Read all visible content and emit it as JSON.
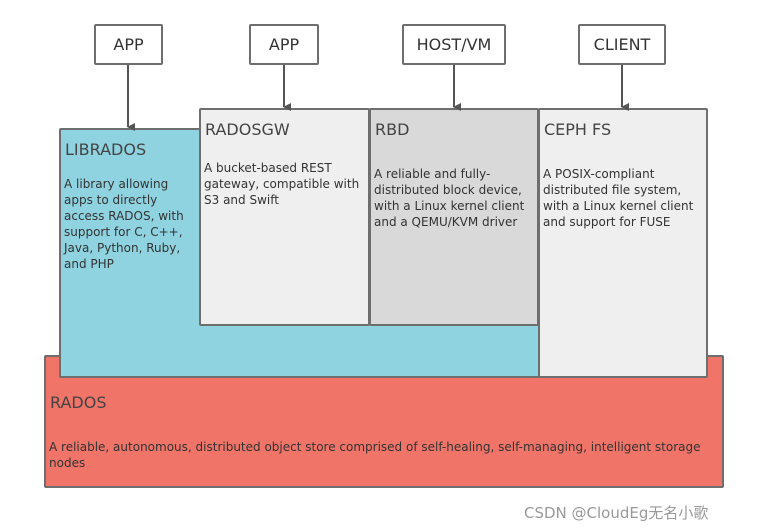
{
  "clients": [
    {
      "label": "APP"
    },
    {
      "label": "APP"
    },
    {
      "label": "HOST/VM"
    },
    {
      "label": "CLIENT"
    }
  ],
  "components": {
    "librados": {
      "title": "LIBRADOS",
      "description": "A library allowing apps to directly access RADOS, with support for C, C++, Java, Python, Ruby, and PHP"
    },
    "radosgw": {
      "title": "RADOSGW",
      "description": "A bucket-based REST gateway, compatible with S3 and Swift"
    },
    "rbd": {
      "title": "RBD",
      "description": "A reliable and fully-distributed block device, with a Linux kernel client and a QEMU/KVM driver"
    },
    "cephfs": {
      "title": "CEPH FS",
      "description": "A POSIX-compliant distributed file system, with a Linux kernel client and support for FUSE"
    },
    "rados": {
      "title": "RADOS",
      "description": "A reliable, autonomous, distributed object store comprised of self-healing, self-managing, intelligent storage nodes"
    }
  },
  "watermark": "CSDN @CloudEg无名小歌"
}
